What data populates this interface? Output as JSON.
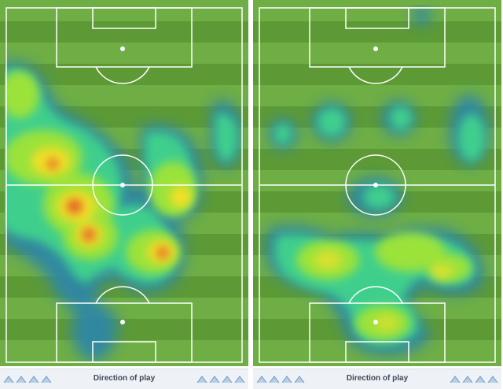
{
  "panels": [
    {
      "id": "left",
      "footer_label": "Direction of play",
      "colors": {
        "stripe_light": "#6fae45",
        "stripe_dark": "#5d9a36",
        "line": "#ffffff",
        "heat_low": "#2f87a6",
        "heat_mid_low": "#3fd38c",
        "heat_mid": "#9be23b",
        "heat_high": "#f2e027",
        "heat_peak": "#e0552a"
      }
    },
    {
      "id": "right",
      "footer_label": "Direction of play",
      "colors": {
        "stripe_light": "#6fae45",
        "stripe_dark": "#5d9a36",
        "line": "#ffffff",
        "heat_low": "#2f87a6",
        "heat_mid_low": "#3fd38c",
        "heat_mid": "#9be23b",
        "heat_high": "#f2e027",
        "heat_peak": "#e0552a"
      }
    }
  ],
  "icons": {
    "chevron": "chevron-up-icon"
  }
}
